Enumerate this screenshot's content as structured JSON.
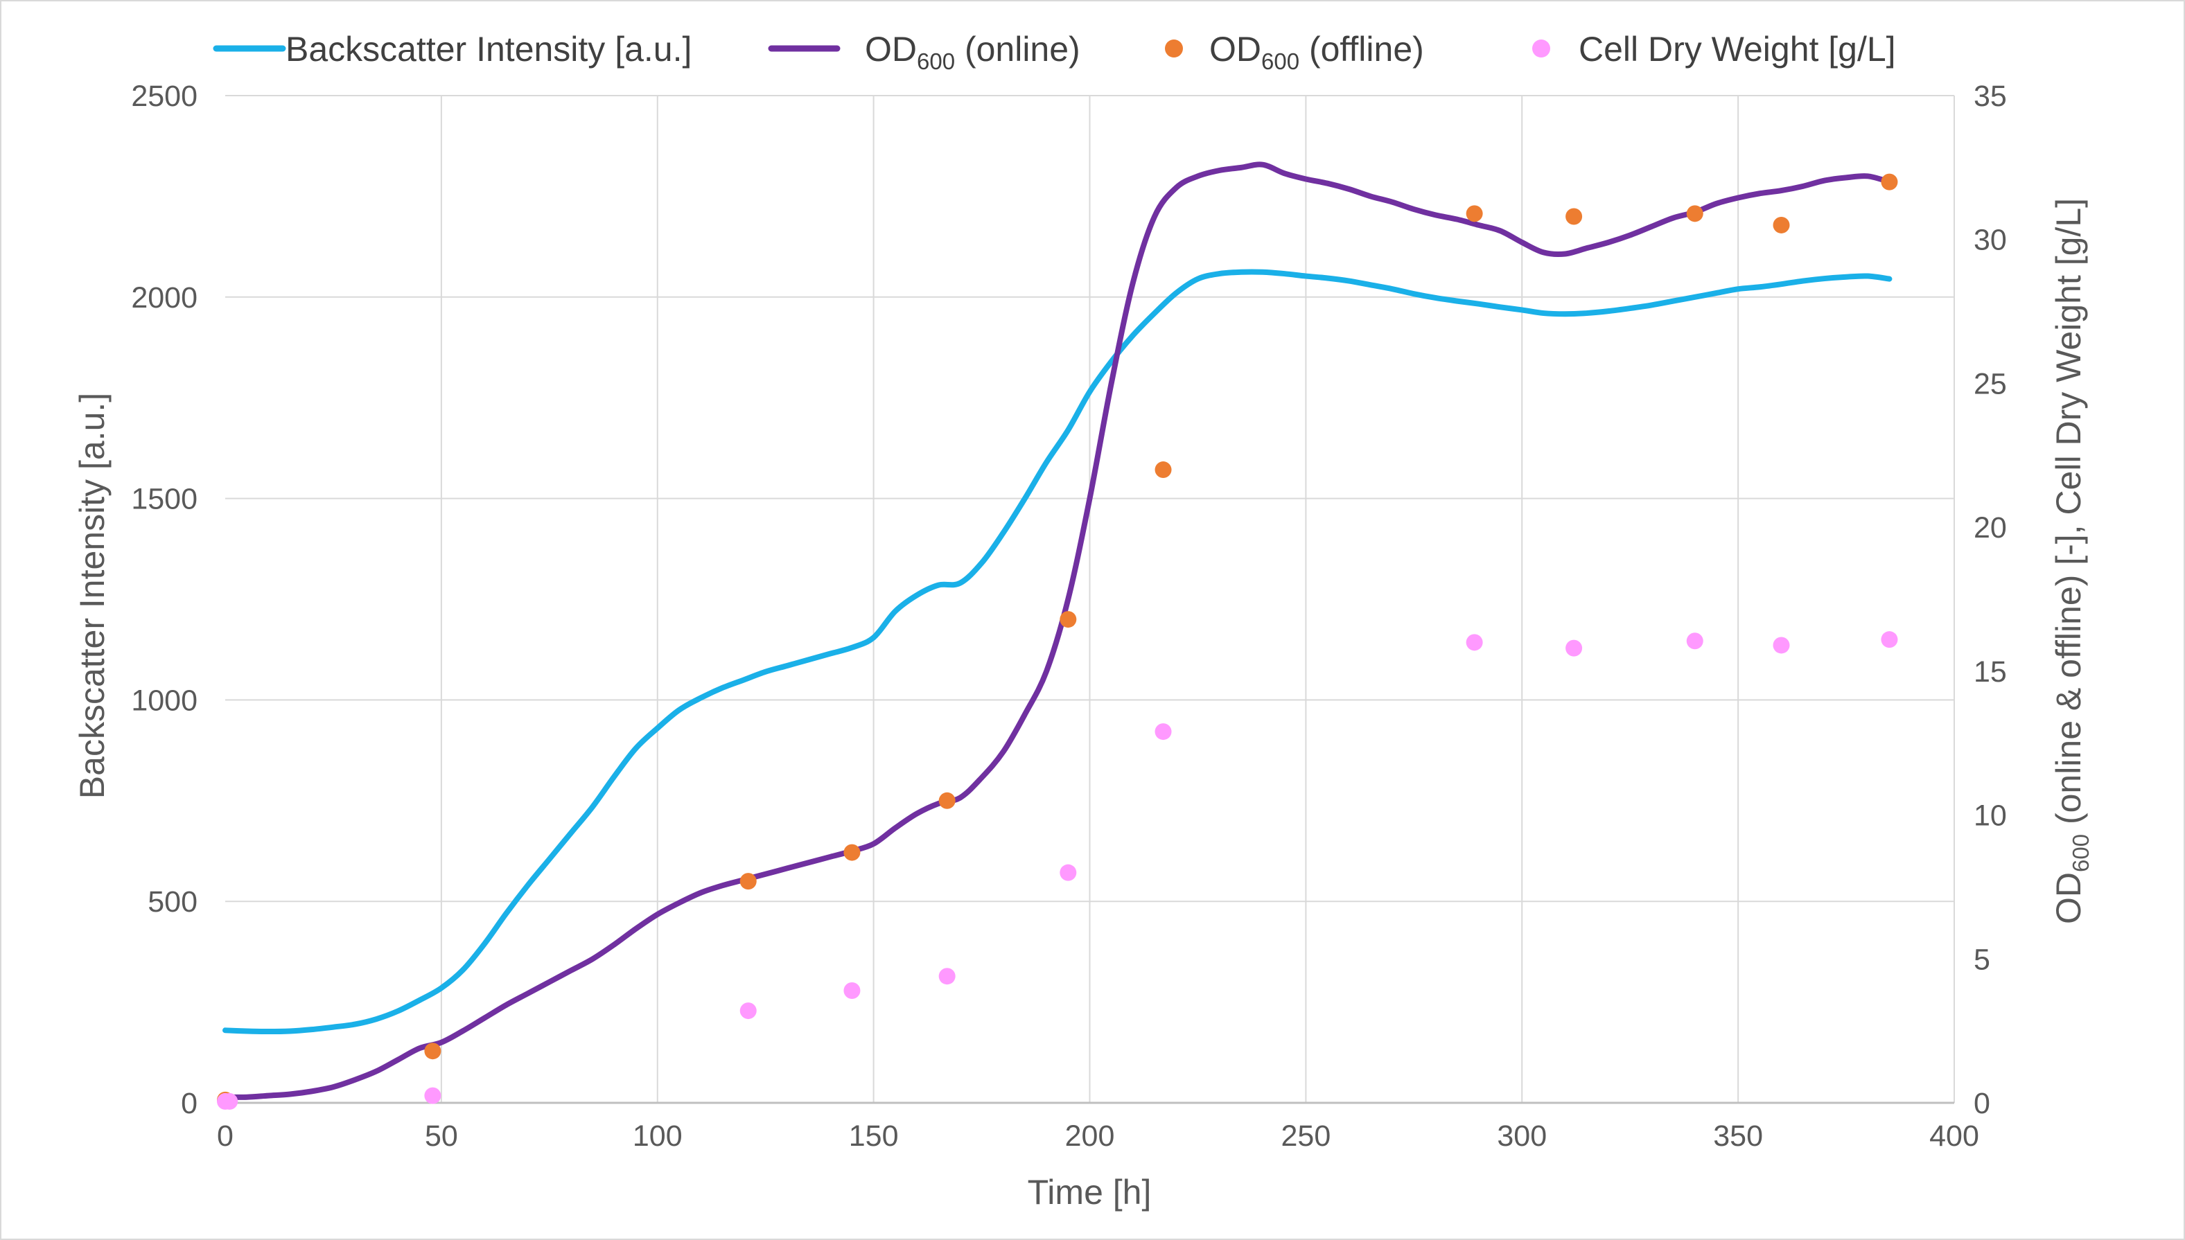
{
  "chart_data": {
    "type": "line",
    "title": "",
    "xlabel": "Time [h]",
    "ylabel_left": "Backscatter Intensity [a.u.]",
    "ylabel_right": {
      "prefix": "OD",
      "sub": "600",
      "suffix": " (online & offline) [-], Cell Dry Weight [g/L]"
    },
    "xlim": [
      0,
      400
    ],
    "ylim_left": [
      0,
      2500
    ],
    "ylim_right": [
      0,
      35
    ],
    "x_ticks": [
      "0",
      "50",
      "100",
      "150",
      "200",
      "250",
      "300",
      "350",
      "400"
    ],
    "y_left_ticks": [
      "0",
      "500",
      "1000",
      "1500",
      "2000",
      "2500"
    ],
    "y_right_ticks": [
      "0",
      "5",
      "10",
      "15",
      "20",
      "25",
      "30",
      "35"
    ],
    "grid": true,
    "legend_position": "top",
    "series": [
      {
        "name": "Backscatter Intensity [a.u.]",
        "kind": "line",
        "axis": "left",
        "color": "#1ab0e8",
        "x": [
          0,
          5,
          10,
          15,
          20,
          25,
          30,
          35,
          40,
          45,
          50,
          55,
          60,
          65,
          70,
          75,
          80,
          85,
          90,
          95,
          100,
          105,
          110,
          115,
          120,
          125,
          130,
          135,
          140,
          145,
          150,
          155,
          160,
          165,
          170,
          175,
          180,
          185,
          190,
          195,
          200,
          205,
          210,
          215,
          220,
          225,
          230,
          235,
          240,
          245,
          250,
          255,
          260,
          265,
          270,
          275,
          280,
          285,
          290,
          295,
          300,
          305,
          310,
          315,
          320,
          325,
          330,
          335,
          340,
          345,
          350,
          355,
          360,
          365,
          370,
          375,
          380,
          385
        ],
        "y": [
          180,
          178,
          177,
          178,
          182,
          188,
          195,
          208,
          228,
          255,
          285,
          330,
          395,
          470,
          540,
          605,
          670,
          735,
          810,
          880,
          930,
          975,
          1005,
          1030,
          1050,
          1070,
          1085,
          1100,
          1115,
          1130,
          1155,
          1220,
          1260,
          1285,
          1290,
          1340,
          1415,
          1500,
          1590,
          1670,
          1765,
          1840,
          1905,
          1960,
          2010,
          2045,
          2058,
          2062,
          2062,
          2058,
          2052,
          2047,
          2040,
          2030,
          2020,
          2008,
          1998,
          1990,
          1983,
          1975,
          1968,
          1960,
          1958,
          1960,
          1965,
          1972,
          1980,
          1990,
          2000,
          2010,
          2020,
          2025,
          2032,
          2040,
          2046,
          2050,
          2052,
          2045
        ]
      },
      {
        "name": "OD600 (online)",
        "label_prefix": "OD",
        "label_sub": "600",
        "label_suffix": " (online)",
        "kind": "line",
        "axis": "right",
        "color": "#7030a0",
        "x": [
          0,
          5,
          10,
          15,
          20,
          25,
          30,
          35,
          40,
          45,
          50,
          55,
          60,
          65,
          70,
          75,
          80,
          85,
          90,
          95,
          100,
          105,
          110,
          115,
          120,
          125,
          130,
          135,
          140,
          145,
          150,
          155,
          160,
          165,
          170,
          175,
          180,
          185,
          190,
          195,
          200,
          205,
          210,
          215,
          220,
          225,
          230,
          235,
          240,
          245,
          250,
          255,
          260,
          265,
          270,
          275,
          280,
          285,
          290,
          295,
          300,
          305,
          310,
          315,
          320,
          325,
          330,
          335,
          340,
          345,
          350,
          355,
          360,
          365,
          370,
          375,
          380,
          385
        ],
        "y": [
          0.2,
          0.2,
          0.25,
          0.3,
          0.4,
          0.55,
          0.8,
          1.1,
          1.5,
          1.9,
          2.1,
          2.5,
          2.95,
          3.4,
          3.8,
          4.2,
          4.6,
          5.0,
          5.5,
          6.05,
          6.55,
          6.95,
          7.3,
          7.55,
          7.75,
          7.95,
          8.15,
          8.35,
          8.55,
          8.75,
          9.0,
          9.55,
          10.05,
          10.4,
          10.6,
          11.3,
          12.2,
          13.5,
          15.0,
          17.5,
          21.0,
          25.0,
          28.5,
          30.8,
          31.8,
          32.2,
          32.4,
          32.5,
          32.6,
          32.3,
          32.1,
          31.95,
          31.75,
          31.5,
          31.3,
          31.05,
          30.85,
          30.7,
          30.5,
          30.3,
          29.9,
          29.55,
          29.5,
          29.7,
          29.9,
          30.15,
          30.45,
          30.75,
          30.95,
          31.25,
          31.45,
          31.6,
          31.7,
          31.85,
          32.05,
          32.15,
          32.2,
          32.0
        ]
      },
      {
        "name": "OD600 (offline)",
        "label_prefix": "OD",
        "label_sub": "600",
        "label_suffix": " (offline)",
        "kind": "scatter",
        "axis": "right",
        "color": "#ed7d31",
        "x": [
          0,
          48,
          121,
          145,
          167,
          195,
          217,
          289,
          312,
          340,
          360,
          385
        ],
        "y": [
          0.1,
          1.8,
          7.7,
          8.7,
          10.5,
          16.8,
          22.0,
          30.9,
          30.8,
          30.9,
          30.5,
          32.0
        ]
      },
      {
        "name": "Cell Dry Weight [g/L]",
        "kind": "scatter",
        "axis": "right",
        "color": "#ff99ff",
        "x": [
          0,
          1,
          48,
          121,
          145,
          167,
          195,
          217,
          289,
          312,
          340,
          360,
          385
        ],
        "y": [
          0.05,
          0.05,
          0.25,
          3.2,
          3.9,
          4.4,
          8.0,
          12.9,
          16.0,
          15.8,
          16.05,
          15.9,
          16.1
        ]
      }
    ]
  }
}
